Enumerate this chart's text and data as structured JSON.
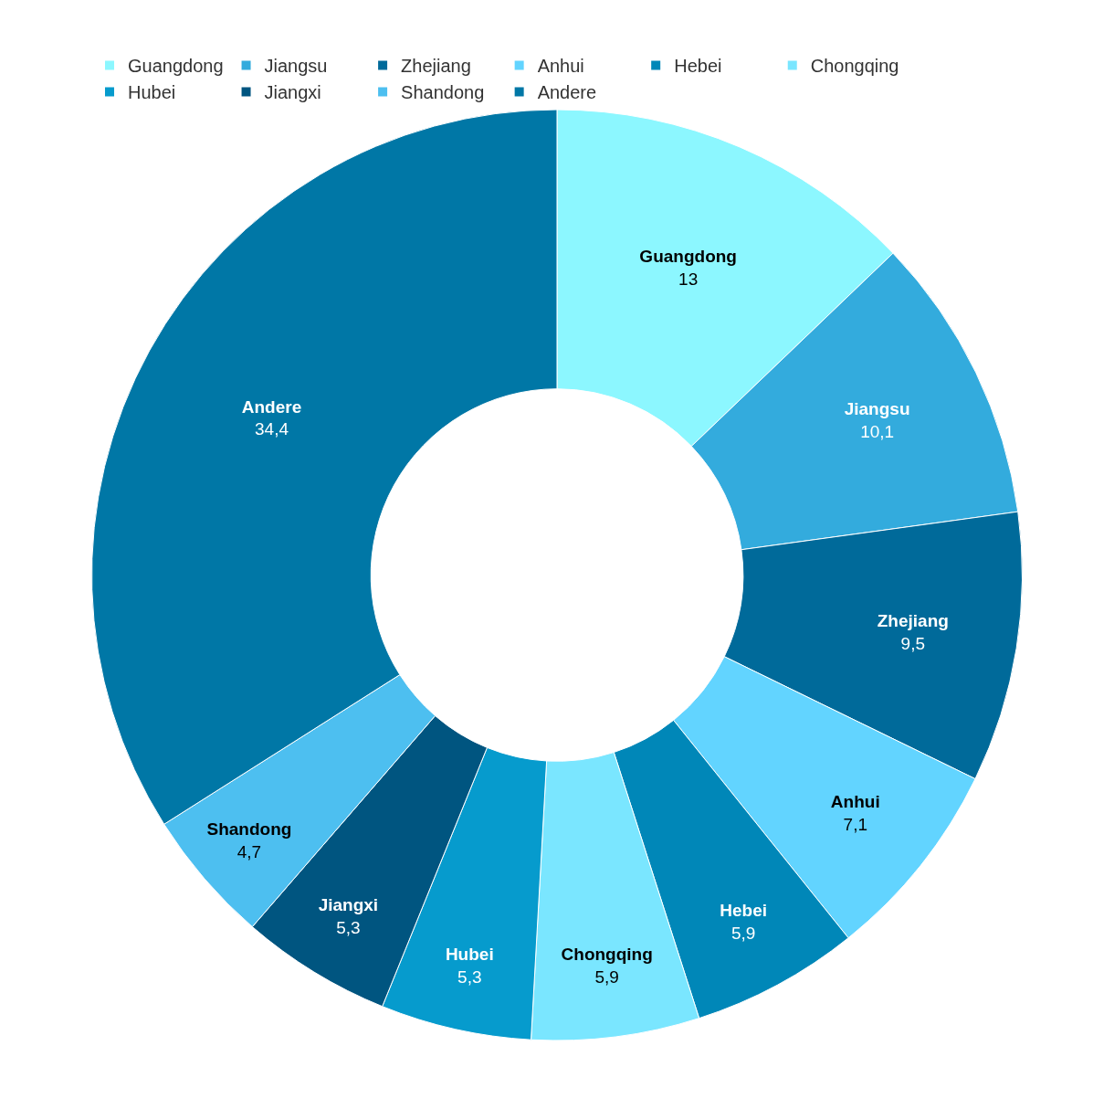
{
  "chart_data": {
    "type": "donut",
    "categories": [
      "Guangdong",
      "Jiangsu",
      "Zhejiang",
      "Anhui",
      "Hebei",
      "Chongqing",
      "Hubei",
      "Jiangxi",
      "Shandong",
      "Andere"
    ],
    "values": [
      13,
      10.1,
      9.5,
      7.1,
      5.9,
      5.9,
      5.3,
      5.3,
      4.7,
      34.4
    ],
    "value_labels": [
      "13",
      "10,1",
      "9,5",
      "7,1",
      "5,9",
      "5,9",
      "5,3",
      "5,3",
      "4,7",
      "34,4"
    ],
    "colors": [
      "#8cf7ff",
      "#33abdd",
      "#006a9a",
      "#62d4ff",
      "#0087b8",
      "#7ae6ff",
      "#069bcd",
      "#005580",
      "#4dbff0",
      "#0077a6"
    ],
    "legend": "top left"
  }
}
